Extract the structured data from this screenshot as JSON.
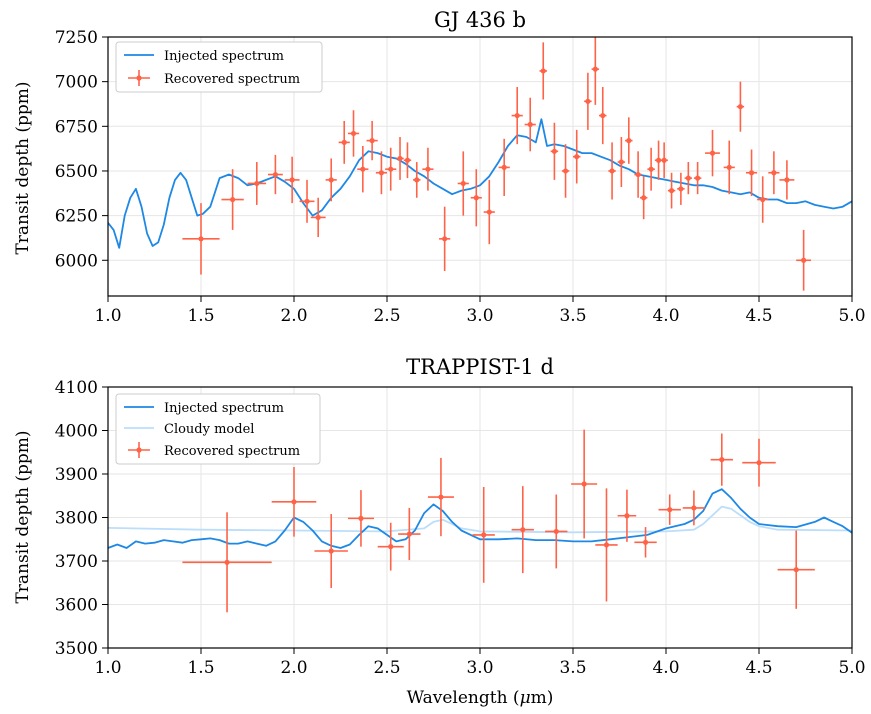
{
  "chart_data": [
    {
      "type": "line",
      "title": "GJ 436 b",
      "xlabel": "",
      "ylabel": "Transit depth (ppm)",
      "xlim": [
        1.0,
        5.0
      ],
      "ylim": [
        5800,
        7250
      ],
      "xticks": [
        "1.0",
        "1.5",
        "2.0",
        "2.5",
        "3.0",
        "3.5",
        "4.0",
        "4.5",
        "5.0"
      ],
      "yticks": [
        "6000",
        "6250",
        "6500",
        "6750",
        "7000",
        "7250"
      ],
      "grid": true,
      "legend_position": "upper-left",
      "legend": [
        "Injected spectrum",
        "Recovered spectrum"
      ],
      "colors": {
        "injected": "#1e88e5",
        "recovered": "#ff6347"
      },
      "injected_x": [
        1.0,
        1.03,
        1.06,
        1.09,
        1.12,
        1.15,
        1.18,
        1.21,
        1.24,
        1.27,
        1.3,
        1.33,
        1.36,
        1.39,
        1.42,
        1.45,
        1.48,
        1.51,
        1.55,
        1.6,
        1.65,
        1.7,
        1.75,
        1.8,
        1.85,
        1.9,
        1.95,
        2.0,
        2.05,
        2.1,
        2.15,
        2.2,
        2.25,
        2.3,
        2.35,
        2.4,
        2.45,
        2.5,
        2.55,
        2.6,
        2.65,
        2.7,
        2.75,
        2.8,
        2.85,
        2.9,
        2.95,
        3.0,
        3.05,
        3.1,
        3.15,
        3.2,
        3.25,
        3.3,
        3.33,
        3.36,
        3.4,
        3.45,
        3.5,
        3.55,
        3.6,
        3.65,
        3.7,
        3.75,
        3.8,
        3.85,
        3.9,
        3.95,
        4.0,
        4.05,
        4.1,
        4.15,
        4.2,
        4.25,
        4.3,
        4.35,
        4.4,
        4.45,
        4.5,
        4.55,
        4.6,
        4.65,
        4.7,
        4.75,
        4.8,
        4.85,
        4.9,
        4.95,
        5.0
      ],
      "injected_y": [
        6210,
        6170,
        6070,
        6250,
        6350,
        6400,
        6300,
        6150,
        6080,
        6100,
        6200,
        6350,
        6450,
        6490,
        6450,
        6350,
        6250,
        6260,
        6300,
        6460,
        6480,
        6460,
        6420,
        6430,
        6450,
        6470,
        6440,
        6400,
        6320,
        6250,
        6280,
        6350,
        6400,
        6470,
        6560,
        6610,
        6600,
        6580,
        6570,
        6540,
        6500,
        6470,
        6430,
        6400,
        6370,
        6390,
        6400,
        6420,
        6470,
        6550,
        6640,
        6700,
        6690,
        6660,
        6790,
        6640,
        6650,
        6640,
        6620,
        6600,
        6600,
        6580,
        6560,
        6530,
        6510,
        6480,
        6470,
        6460,
        6450,
        6440,
        6430,
        6420,
        6420,
        6410,
        6390,
        6380,
        6370,
        6380,
        6350,
        6340,
        6340,
        6320,
        6320,
        6330,
        6310,
        6300,
        6290,
        6300,
        6330
      ],
      "recovered_x": [
        1.5,
        1.67,
        1.8,
        1.9,
        1.99,
        2.07,
        2.13,
        2.2,
        2.27,
        2.32,
        2.37,
        2.42,
        2.47,
        2.52,
        2.57,
        2.61,
        2.66,
        2.72,
        2.81,
        2.91,
        2.98,
        3.05,
        3.13,
        3.2,
        3.27,
        3.34,
        3.4,
        3.46,
        3.52,
        3.58,
        3.62,
        3.66,
        3.71,
        3.76,
        3.8,
        3.85,
        3.88,
        3.92,
        3.96,
        3.99,
        4.03,
        4.08,
        4.12,
        4.17,
        4.25,
        4.34,
        4.4,
        4.46,
        4.52,
        4.58,
        4.65,
        4.74
      ],
      "recovered_y": [
        6120,
        6340,
        6430,
        6480,
        6450,
        6330,
        6240,
        6450,
        6660,
        6710,
        6510,
        6670,
        6490,
        6510,
        6570,
        6560,
        6450,
        6510,
        6120,
        6430,
        6350,
        6270,
        6520,
        6810,
        6760,
        7060,
        6610,
        6500,
        6580,
        6890,
        7070,
        6810,
        6500,
        6550,
        6670,
        6480,
        6350,
        6510,
        6560,
        6560,
        6390,
        6400,
        6460,
        6460,
        6600,
        6520,
        6860,
        6490,
        6340,
        6490,
        6450,
        6000
      ],
      "recovered_xerr": [
        0.1,
        0.06,
        0.05,
        0.04,
        0.04,
        0.04,
        0.04,
        0.03,
        0.03,
        0.03,
        0.03,
        0.03,
        0.03,
        0.03,
        0.02,
        0.02,
        0.02,
        0.03,
        0.03,
        0.03,
        0.03,
        0.03,
        0.03,
        0.03,
        0.03,
        0.02,
        0.02,
        0.02,
        0.02,
        0.02,
        0.02,
        0.02,
        0.02,
        0.02,
        0.02,
        0.02,
        0.02,
        0.02,
        0.02,
        0.02,
        0.02,
        0.02,
        0.02,
        0.02,
        0.04,
        0.03,
        0.02,
        0.03,
        0.03,
        0.03,
        0.04,
        0.04
      ],
      "recovered_yerr": [
        200,
        170,
        120,
        110,
        130,
        120,
        110,
        120,
        120,
        130,
        130,
        110,
        120,
        120,
        120,
        100,
        100,
        120,
        180,
        180,
        160,
        180,
        160,
        160,
        150,
        160,
        160,
        150,
        150,
        160,
        200,
        160,
        160,
        140,
        130,
        130,
        120,
        120,
        110,
        100,
        100,
        90,
        90,
        90,
        130,
        150,
        140,
        130,
        130,
        120,
        110,
        170
      ]
    },
    {
      "type": "line",
      "title": "TRAPPIST-1 d",
      "xlabel": "Wavelength (μm)",
      "ylabel": "Transit depth (ppm)",
      "xlim": [
        1.0,
        5.0
      ],
      "ylim": [
        3500,
        4100
      ],
      "xticks": [
        "1.0",
        "1.5",
        "2.0",
        "2.5",
        "3.0",
        "3.5",
        "4.0",
        "4.5",
        "5.0"
      ],
      "yticks": [
        "3500",
        "3600",
        "3700",
        "3800",
        "3900",
        "4000",
        "4100"
      ],
      "grid": true,
      "legend_position": "upper-left",
      "legend": [
        "Injected spectrum",
        "Cloudy model",
        "Recovered spectrum"
      ],
      "colors": {
        "injected": "#1e88e5",
        "cloudy": "#bbdefb",
        "recovered": "#ff6347"
      },
      "injected_x": [
        1.0,
        1.05,
        1.1,
        1.15,
        1.2,
        1.25,
        1.3,
        1.35,
        1.4,
        1.45,
        1.5,
        1.55,
        1.6,
        1.65,
        1.7,
        1.75,
        1.8,
        1.85,
        1.9,
        1.95,
        2.0,
        2.05,
        2.1,
        2.15,
        2.2,
        2.25,
        2.3,
        2.35,
        2.4,
        2.45,
        2.5,
        2.55,
        2.6,
        2.65,
        2.7,
        2.75,
        2.8,
        2.85,
        2.9,
        2.95,
        3.0,
        3.1,
        3.2,
        3.3,
        3.4,
        3.5,
        3.6,
        3.7,
        3.8,
        3.9,
        4.0,
        4.1,
        4.15,
        4.2,
        4.25,
        4.3,
        4.35,
        4.4,
        4.45,
        4.5,
        4.6,
        4.7,
        4.8,
        4.85,
        4.9,
        4.95,
        5.0
      ],
      "injected_y": [
        3730,
        3738,
        3730,
        3745,
        3740,
        3742,
        3748,
        3745,
        3742,
        3748,
        3750,
        3752,
        3748,
        3740,
        3740,
        3745,
        3740,
        3735,
        3745,
        3770,
        3800,
        3790,
        3770,
        3745,
        3735,
        3730,
        3738,
        3760,
        3780,
        3775,
        3760,
        3745,
        3750,
        3770,
        3810,
        3830,
        3815,
        3790,
        3770,
        3760,
        3750,
        3750,
        3752,
        3748,
        3748,
        3745,
        3745,
        3750,
        3755,
        3760,
        3775,
        3785,
        3795,
        3815,
        3855,
        3865,
        3845,
        3820,
        3800,
        3785,
        3780,
        3778,
        3790,
        3800,
        3790,
        3780,
        3765
      ],
      "cloudy_x": [
        1.0,
        1.5,
        2.0,
        2.5,
        2.7,
        2.75,
        2.8,
        2.85,
        2.9,
        3.0,
        3.5,
        4.0,
        4.15,
        4.2,
        4.25,
        4.3,
        4.35,
        4.4,
        4.45,
        4.5,
        4.6,
        5.0
      ],
      "cloudy_y": [
        3776,
        3772,
        3770,
        3768,
        3775,
        3790,
        3795,
        3785,
        3775,
        3768,
        3766,
        3768,
        3772,
        3785,
        3805,
        3825,
        3820,
        3805,
        3790,
        3780,
        3772,
        3770
      ],
      "recovered_x": [
        1.64,
        2.0,
        2.2,
        2.36,
        2.52,
        2.62,
        2.79,
        3.02,
        3.23,
        3.41,
        3.56,
        3.68,
        3.79,
        3.89,
        4.02,
        4.15,
        4.3,
        4.5,
        4.7
      ],
      "recovered_y": [
        3697,
        3836,
        3723,
        3798,
        3733,
        3762,
        3847,
        3760,
        3772,
        3768,
        3877,
        3737,
        3804,
        3743,
        3818,
        3822,
        3933,
        3926,
        3680
      ],
      "recovered_xerr": [
        0.24,
        0.12,
        0.09,
        0.07,
        0.07,
        0.06,
        0.07,
        0.06,
        0.06,
        0.06,
        0.07,
        0.06,
        0.05,
        0.06,
        0.06,
        0.06,
        0.06,
        0.09,
        0.1
      ],
      "recovered_yerr": [
        115,
        80,
        85,
        65,
        55,
        60,
        90,
        110,
        100,
        85,
        125,
        130,
        60,
        35,
        35,
        40,
        60,
        55,
        90
      ]
    }
  ]
}
